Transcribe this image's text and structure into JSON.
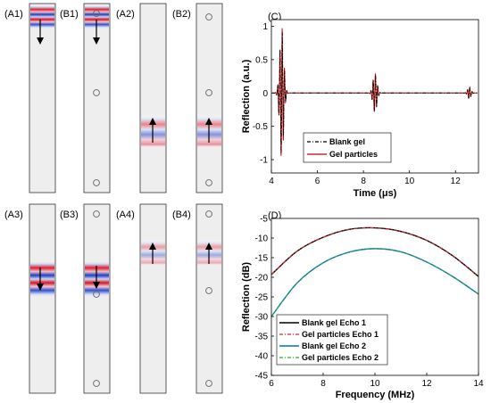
{
  "simulation_panels": [
    {
      "label": "(A1)",
      "wave_position": 0.06,
      "direction": "down",
      "has_particles": false,
      "particles": []
    },
    {
      "label": "(B1)",
      "wave_position": 0.06,
      "direction": "down",
      "has_particles": true,
      "particles": [
        0.05,
        0.48,
        0.96
      ]
    },
    {
      "label": "(A2)",
      "wave_position": 0.62,
      "direction": "up",
      "has_particles": false,
      "particles": []
    },
    {
      "label": "(B2)",
      "wave_position": 0.62,
      "direction": "up",
      "has_particles": true,
      "particles": [
        0.05,
        0.48,
        0.96
      ]
    },
    {
      "label": "(A3)",
      "wave_position": 0.4,
      "direction": "down",
      "has_particles": false,
      "particles": []
    },
    {
      "label": "(B3)",
      "wave_position": 0.4,
      "direction": "down",
      "has_particles": true,
      "particles": [
        0.05,
        0.48,
        0.96
      ]
    },
    {
      "label": "(A4)",
      "wave_position": 0.24,
      "direction": "up",
      "has_particles": false,
      "particles": []
    },
    {
      "label": "(B4)",
      "wave_position": 0.24,
      "direction": "up",
      "has_particles": true,
      "particles": [
        0.05,
        0.48,
        0.96
      ]
    }
  ],
  "chart_data": [
    {
      "label": "(C)",
      "type": "line",
      "xlabel": "Time (μs)",
      "ylabel": "Reflection (a.u.)",
      "xlim": [
        4,
        13
      ],
      "ylim": [
        -1.2,
        1.1
      ],
      "xticks": [
        4,
        6,
        8,
        10,
        12
      ],
      "yticks": [
        -1,
        -0.5,
        0,
        0.5,
        1
      ],
      "xtick_labels": [
        "4",
        "6",
        "8",
        "10",
        "12"
      ],
      "ytick_labels": [
        "-1",
        "-0.5",
        "0",
        "0.5",
        "1"
      ],
      "legend_position": "bottom-center",
      "series": [
        {
          "name": "Blank gel",
          "color": "#000000",
          "style": "dash-dot",
          "echoes": [
            {
              "center": 4.45,
              "width": 0.12,
              "amplitude": 0.95
            },
            {
              "center": 8.5,
              "width": 0.12,
              "amplitude": 0.28
            },
            {
              "center": 12.6,
              "width": 0.1,
              "amplitude": 0.08
            }
          ]
        },
        {
          "name": "Gel particles",
          "color": "#c00000",
          "style": "solid",
          "echoes": [
            {
              "center": 4.45,
              "width": 0.12,
              "amplitude": 1.0
            },
            {
              "center": 8.5,
              "width": 0.12,
              "amplitude": 0.3
            },
            {
              "center": 12.6,
              "width": 0.1,
              "amplitude": 0.09
            }
          ]
        }
      ]
    },
    {
      "label": "(D)",
      "type": "line",
      "xlabel": "Frequency (MHz)",
      "ylabel": "Reflection (dB)",
      "xlim": [
        6,
        14
      ],
      "ylim": [
        -45,
        -5
      ],
      "xticks": [
        6,
        8,
        10,
        12,
        14
      ],
      "yticks": [
        -45,
        -40,
        -35,
        -30,
        -25,
        -20,
        -15,
        -10,
        -5
      ],
      "xtick_labels": [
        "6",
        "8",
        "10",
        "12",
        "14"
      ],
      "ytick_labels": [
        "-45",
        "-40",
        "-35",
        "-30",
        "-25",
        "-20",
        "-15",
        "-10",
        "-5"
      ],
      "legend_position": "bottom-center",
      "series": [
        {
          "name": "Blank gel Echo 1",
          "color": "#000000",
          "style": "solid",
          "x": [
            6,
            7,
            8,
            9,
            10,
            11,
            12,
            13,
            14
          ],
          "values": [
            -19.3,
            -13.3,
            -9.8,
            -7.8,
            -7.4,
            -8.3,
            -10.6,
            -14.5,
            -19.8
          ]
        },
        {
          "name": "Gel particles Echo 1",
          "color": "#d62728",
          "style": "dash-dot",
          "x": [
            6,
            7,
            8,
            9,
            10,
            11,
            12,
            13,
            14
          ],
          "values": [
            -19.3,
            -13.3,
            -9.8,
            -7.8,
            -7.4,
            -8.3,
            -10.6,
            -14.5,
            -19.8
          ]
        },
        {
          "name": "Blank gel Echo 2",
          "color": "#0072bd",
          "style": "solid",
          "x": [
            6,
            7,
            8,
            9,
            10,
            11,
            12,
            13,
            14
          ],
          "values": [
            -30.0,
            -21.4,
            -16.3,
            -13.6,
            -12.7,
            -13.5,
            -16.1,
            -19.8,
            -24.3
          ]
        },
        {
          "name": "Gel particles Echo 2",
          "color": "#33aa33",
          "style": "dash-dot",
          "x": [
            6,
            7,
            8,
            9,
            10,
            11,
            12,
            13,
            14
          ],
          "values": [
            -30.0,
            -21.4,
            -16.3,
            -13.6,
            -12.7,
            -13.5,
            -16.1,
            -19.8,
            -24.3
          ]
        }
      ]
    }
  ]
}
